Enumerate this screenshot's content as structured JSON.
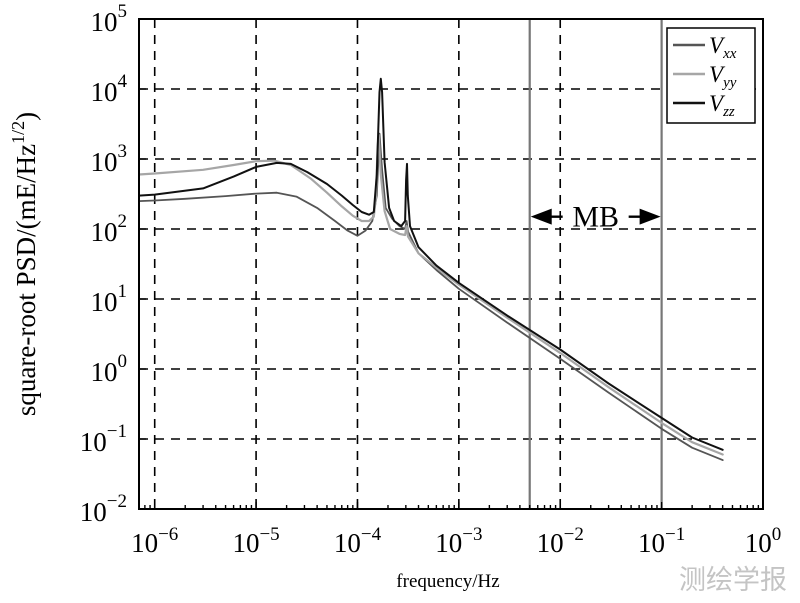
{
  "chart_data": {
    "type": "line",
    "title": "",
    "xlabel": "frequency/Hz",
    "ylabel": "square-root PSD/(mE/Hz^1/2)",
    "x_scale": "log",
    "y_scale": "log",
    "xlim": [
      7e-07,
      1
    ],
    "ylim": [
      0.01,
      100000
    ],
    "x_ticks": [
      {
        "value": 1e-06,
        "base": "10",
        "exp": "−6"
      },
      {
        "value": 1e-05,
        "base": "10",
        "exp": "−5"
      },
      {
        "value": 0.0001,
        "base": "10",
        "exp": "−4"
      },
      {
        "value": 0.001,
        "base": "10",
        "exp": "−3"
      },
      {
        "value": 0.01,
        "base": "10",
        "exp": "−2"
      },
      {
        "value": 0.1,
        "base": "10",
        "exp": "−1"
      },
      {
        "value": 1,
        "base": "10",
        "exp": "0"
      }
    ],
    "y_ticks": [
      {
        "value": 0.01,
        "base": "10",
        "exp": "−2"
      },
      {
        "value": 0.1,
        "base": "10",
        "exp": "−1"
      },
      {
        "value": 1,
        "base": "10",
        "exp": "0"
      },
      {
        "value": 10,
        "base": "10",
        "exp": "1"
      },
      {
        "value": 100,
        "base": "10",
        "exp": "2"
      },
      {
        "value": 1000,
        "base": "10",
        "exp": "3"
      },
      {
        "value": 10000,
        "base": "10",
        "exp": "4"
      },
      {
        "value": 100000,
        "base": "10",
        "exp": "5"
      }
    ],
    "grid": true,
    "legend_position": "top-right",
    "annotations": [
      {
        "type": "vline",
        "x": 0.005
      },
      {
        "type": "vline",
        "x": 0.1
      },
      {
        "type": "band-label",
        "text": "MB",
        "x_from": 0.005,
        "x_to": 0.1,
        "y": 150
      }
    ],
    "series": [
      {
        "name": "V",
        "subscript": "xx",
        "color": "#555555",
        "points": [
          [
            7e-07,
            250
          ],
          [
            1e-06,
            255
          ],
          [
            2e-06,
            270
          ],
          [
            5e-06,
            295
          ],
          [
            1e-05,
            320
          ],
          [
            1.6e-05,
            330
          ],
          [
            2.5e-05,
            290
          ],
          [
            4e-05,
            200
          ],
          [
            6e-05,
            130
          ],
          [
            8e-05,
            95
          ],
          [
            0.0001,
            80
          ],
          [
            0.00012,
            95
          ],
          [
            0.00014,
            130
          ],
          [
            0.000155,
            300
          ],
          [
            0.000165,
            2300
          ],
          [
            0.000175,
            700
          ],
          [
            0.00019,
            200
          ],
          [
            0.00022,
            140
          ],
          [
            0.00026,
            110
          ],
          [
            0.000295,
            100
          ],
          [
            0.000305,
            130
          ],
          [
            0.000315,
            92
          ],
          [
            0.0004,
            45
          ],
          [
            0.0006,
            26
          ],
          [
            0.001,
            14
          ],
          [
            0.003,
            4.6
          ],
          [
            0.01,
            1.4
          ],
          [
            0.03,
            0.46
          ],
          [
            0.1,
            0.14
          ],
          [
            0.2,
            0.075
          ],
          [
            0.4,
            0.05
          ]
        ]
      },
      {
        "name": "V",
        "subscript": "yy",
        "color": "#a6a6a6",
        "points": [
          [
            7e-07,
            600
          ],
          [
            1e-06,
            620
          ],
          [
            3e-06,
            700
          ],
          [
            6e-06,
            820
          ],
          [
            1e-05,
            930
          ],
          [
            1.5e-05,
            950
          ],
          [
            2.2e-05,
            820
          ],
          [
            3.5e-05,
            520
          ],
          [
            5e-05,
            330
          ],
          [
            7e-05,
            210
          ],
          [
            9e-05,
            155
          ],
          [
            0.00011,
            130
          ],
          [
            0.00013,
            130
          ],
          [
            0.000145,
            150
          ],
          [
            0.000152,
            280
          ],
          [
            0.000158,
            1500
          ],
          [
            0.000162,
            2200
          ],
          [
            0.00017,
            600
          ],
          [
            0.000185,
            180
          ],
          [
            0.00021,
            100
          ],
          [
            0.00026,
            85
          ],
          [
            0.000295,
            82
          ],
          [
            0.000305,
            110
          ],
          [
            0.000315,
            78
          ],
          [
            0.0004,
            45
          ],
          [
            0.0006,
            28
          ],
          [
            0.001,
            16
          ],
          [
            0.003,
            5.4
          ],
          [
            0.01,
            1.7
          ],
          [
            0.03,
            0.55
          ],
          [
            0.1,
            0.17
          ],
          [
            0.2,
            0.09
          ],
          [
            0.4,
            0.06
          ]
        ]
      },
      {
        "name": "V",
        "subscript": "zz",
        "color": "#111111",
        "points": [
          [
            7e-07,
            300
          ],
          [
            1e-06,
            310
          ],
          [
            3e-06,
            380
          ],
          [
            6e-06,
            560
          ],
          [
            1e-05,
            770
          ],
          [
            1.6e-05,
            880
          ],
          [
            2.2e-05,
            850
          ],
          [
            3.2e-05,
            650
          ],
          [
            5e-05,
            440
          ],
          [
            7e-05,
            300
          ],
          [
            9e-05,
            220
          ],
          [
            0.00011,
            175
          ],
          [
            0.00013,
            160
          ],
          [
            0.000145,
            175
          ],
          [
            0.000155,
            600
          ],
          [
            0.000165,
            9000
          ],
          [
            0.00017,
            14000
          ],
          [
            0.000175,
            9000
          ],
          [
            0.000185,
            900
          ],
          [
            0.000205,
            200
          ],
          [
            0.00023,
            130
          ],
          [
            0.00027,
            110
          ],
          [
            0.000295,
            130
          ],
          [
            0.000302,
            500
          ],
          [
            0.000308,
            850
          ],
          [
            0.000314,
            300
          ],
          [
            0.00033,
            110
          ],
          [
            0.0004,
            55
          ],
          [
            0.0006,
            30
          ],
          [
            0.001,
            17
          ],
          [
            0.003,
            5.8
          ],
          [
            0.01,
            1.9
          ],
          [
            0.03,
            0.62
          ],
          [
            0.1,
            0.2
          ],
          [
            0.2,
            0.105
          ],
          [
            0.4,
            0.07
          ]
        ]
      }
    ]
  },
  "watermark": {
    "text": "测绘学报"
  }
}
